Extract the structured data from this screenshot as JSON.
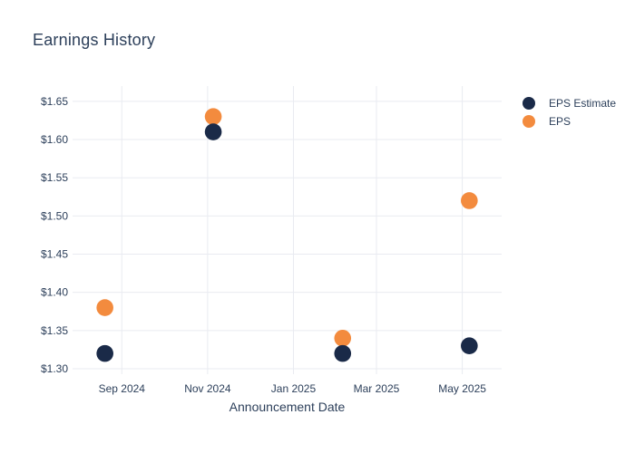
{
  "title": "Earnings History",
  "colors": {
    "text": "#2c3f5a",
    "grid": "#e9ebf1",
    "background": "#ffffff",
    "eps_estimate": "#1a2a48",
    "eps": "#f38b3e"
  },
  "legend": {
    "items": [
      {
        "label": "EPS Estimate"
      },
      {
        "label": "EPS"
      }
    ]
  },
  "chart_data": {
    "type": "scatter",
    "title": "Earnings History",
    "xlabel": "Announcement Date",
    "ylabel": "",
    "grid": true,
    "legend_position": "outside-top-right",
    "x_range": [
      "2024-07-28",
      "2025-05-29"
    ],
    "y_range": [
      1.3,
      1.67
    ],
    "x_ticks": [
      {
        "date": "2024-09-01",
        "label": "Sep 2024"
      },
      {
        "date": "2024-11-01",
        "label": "Nov 2024"
      },
      {
        "date": "2025-01-01",
        "label": "Jan 2025"
      },
      {
        "date": "2025-03-01",
        "label": "Mar 2025"
      },
      {
        "date": "2025-05-01",
        "label": "May 2025"
      }
    ],
    "y_ticks": [
      {
        "value": 1.3,
        "label": "$1.30"
      },
      {
        "value": 1.35,
        "label": "$1.35"
      },
      {
        "value": 1.4,
        "label": "$1.40"
      },
      {
        "value": 1.45,
        "label": "$1.45"
      },
      {
        "value": 1.5,
        "label": "$1.50"
      },
      {
        "value": 1.55,
        "label": "$1.55"
      },
      {
        "value": 1.6,
        "label": "$1.60"
      },
      {
        "value": 1.65,
        "label": "$1.65"
      }
    ],
    "series": [
      {
        "name": "EPS Estimate",
        "color": "#1a2a48",
        "points": [
          {
            "x": "2024-08-20",
            "y": 1.32
          },
          {
            "x": "2024-11-05",
            "y": 1.61
          },
          {
            "x": "2025-02-05",
            "y": 1.32
          },
          {
            "x": "2025-05-06",
            "y": 1.33
          }
        ]
      },
      {
        "name": "EPS",
        "color": "#f38b3e",
        "points": [
          {
            "x": "2024-08-20",
            "y": 1.38
          },
          {
            "x": "2024-11-05",
            "y": 1.63
          },
          {
            "x": "2025-02-05",
            "y": 1.34
          },
          {
            "x": "2025-05-06",
            "y": 1.52
          }
        ]
      }
    ]
  }
}
